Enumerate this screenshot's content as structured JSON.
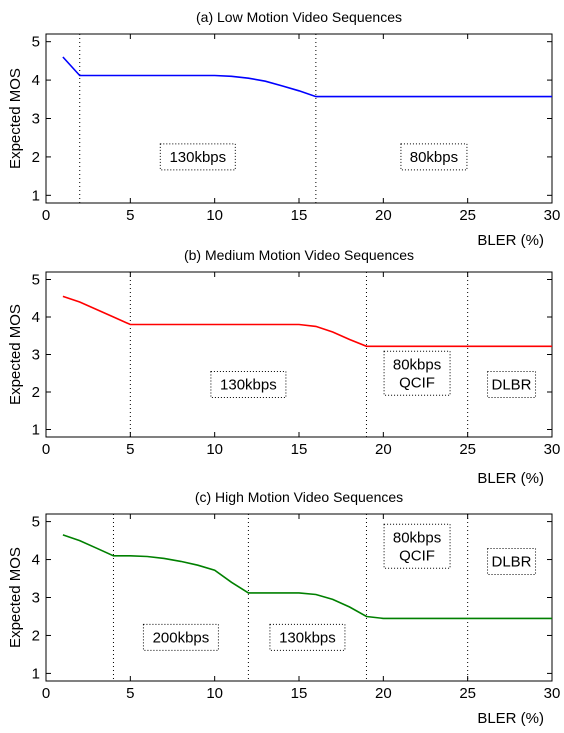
{
  "chart_data": [
    {
      "type": "line",
      "title": "(a) Low Motion Video Sequences",
      "xlabel": "BLER (%)",
      "ylabel": "Expected MOS",
      "xlim": [
        0,
        30
      ],
      "ylim": [
        0.8,
        5.2
      ],
      "xticks": [
        0,
        5,
        10,
        15,
        20,
        25,
        30
      ],
      "yticks": [
        1,
        2,
        3,
        4,
        5
      ],
      "grid": false,
      "series": [
        {
          "color": "#0000ff",
          "x": [
            1,
            2,
            3,
            4,
            5,
            6,
            7,
            8,
            9,
            10,
            11,
            12,
            13,
            14,
            15,
            16,
            17,
            18,
            19,
            20,
            21,
            22,
            23,
            24,
            25,
            26,
            27,
            28,
            29,
            30
          ],
          "y": [
            4.6,
            4.12,
            4.12,
            4.12,
            4.12,
            4.12,
            4.12,
            4.12,
            4.12,
            4.12,
            4.1,
            4.05,
            3.97,
            3.85,
            3.72,
            3.57,
            3.57,
            3.57,
            3.57,
            3.57,
            3.57,
            3.57,
            3.57,
            3.57,
            3.57,
            3.57,
            3.57,
            3.57,
            3.57,
            3.57
          ]
        }
      ],
      "boundaries": [
        2,
        16
      ],
      "regions": [
        {
          "lines": [
            "130kbps"
          ],
          "x": 9,
          "y": 2.0
        },
        {
          "lines": [
            "80kbps"
          ],
          "x": 23,
          "y": 2.0
        }
      ]
    },
    {
      "type": "line",
      "title": "(b) Medium Motion Video Sequences",
      "xlabel": "BLER (%)",
      "ylabel": "Expected MOS",
      "xlim": [
        0,
        30
      ],
      "ylim": [
        0.8,
        5.2
      ],
      "xticks": [
        0,
        5,
        10,
        15,
        20,
        25,
        30
      ],
      "yticks": [
        1,
        2,
        3,
        4,
        5
      ],
      "grid": false,
      "series": [
        {
          "color": "#ff0000",
          "x": [
            1,
            2,
            3,
            4,
            5,
            6,
            7,
            8,
            9,
            10,
            11,
            12,
            13,
            14,
            15,
            16,
            17,
            18,
            19,
            20,
            21,
            22,
            23,
            24,
            25,
            26,
            27,
            28,
            29,
            30
          ],
          "y": [
            4.55,
            4.4,
            4.2,
            4.0,
            3.8,
            3.8,
            3.8,
            3.8,
            3.8,
            3.8,
            3.8,
            3.8,
            3.8,
            3.8,
            3.8,
            3.75,
            3.6,
            3.4,
            3.22,
            3.22,
            3.22,
            3.22,
            3.22,
            3.22,
            3.22,
            3.22,
            3.22,
            3.22,
            3.22,
            3.22
          ]
        }
      ],
      "boundaries": [
        5,
        19,
        25
      ],
      "regions": [
        {
          "lines": [
            "130kbps"
          ],
          "x": 12,
          "y": 2.2
        },
        {
          "lines": [
            "80kbps",
            "QCIF"
          ],
          "x": 22,
          "y": 2.5
        },
        {
          "lines": [
            "DLBR"
          ],
          "x": 27.6,
          "y": 2.2
        }
      ]
    },
    {
      "type": "line",
      "title": "(c) High Motion Video Sequences",
      "xlabel": "BLER (%)",
      "ylabel": "Expected MOS",
      "xlim": [
        0,
        30
      ],
      "ylim": [
        0.8,
        5.2
      ],
      "xticks": [
        0,
        5,
        10,
        15,
        20,
        25,
        30
      ],
      "yticks": [
        1,
        2,
        3,
        4,
        5
      ],
      "grid": false,
      "series": [
        {
          "color": "#008000",
          "x": [
            1,
            2,
            3,
            4,
            5,
            6,
            7,
            8,
            9,
            10,
            11,
            12,
            13,
            14,
            15,
            16,
            17,
            18,
            19,
            20,
            21,
            22,
            23,
            24,
            25,
            26,
            27,
            28,
            29,
            30
          ],
          "y": [
            4.65,
            4.5,
            4.3,
            4.1,
            4.1,
            4.08,
            4.03,
            3.95,
            3.85,
            3.72,
            3.4,
            3.12,
            3.12,
            3.12,
            3.12,
            3.08,
            2.95,
            2.75,
            2.5,
            2.45,
            2.45,
            2.45,
            2.45,
            2.45,
            2.45,
            2.45,
            2.45,
            2.45,
            2.45,
            2.45
          ]
        }
      ],
      "boundaries": [
        4,
        12,
        19,
        25
      ],
      "regions": [
        {
          "lines": [
            "200kbps"
          ],
          "x": 8,
          "y": 1.95
        },
        {
          "lines": [
            "130kbps"
          ],
          "x": 15.5,
          "y": 1.95
        },
        {
          "lines": [
            "80kbps",
            "QCIF"
          ],
          "x": 22,
          "y": 4.35
        },
        {
          "lines": [
            "DLBR"
          ],
          "x": 27.6,
          "y": 3.95
        }
      ]
    }
  ]
}
